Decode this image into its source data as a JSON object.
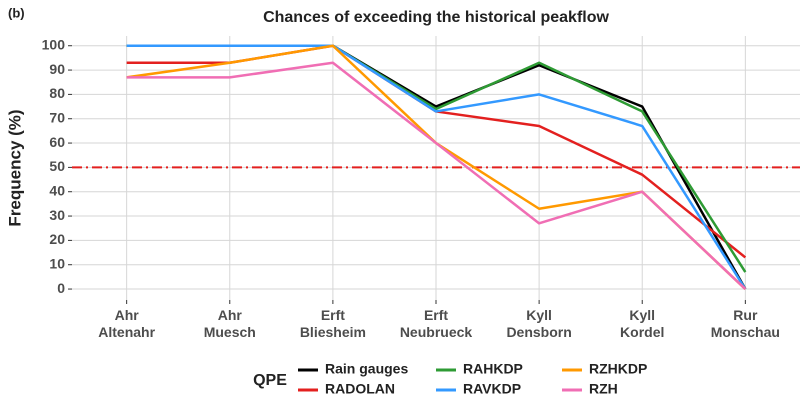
{
  "chart_data": {
    "type": "line",
    "panel_label": "(b)",
    "title": "Chances of exceeding the historical peakflow",
    "y_label": "Frequency (%)",
    "legend_title": "QPE",
    "categories": [
      "Ahr\nAltenahr",
      "Ahr\nMuesch",
      "Erft\nBliesheim",
      "Erft\nNeubrueck",
      "Kyll\nDensborn",
      "Kyll\nKordel",
      "Rur\nMonschau"
    ],
    "series": [
      {
        "name": "Rain gauges",
        "color": "#000000",
        "values": [
          100,
          100,
          100,
          75,
          92,
          75,
          0
        ]
      },
      {
        "name": "RADOLAN",
        "color": "#e3201f",
        "values": [
          93,
          93,
          100,
          73,
          67,
          47,
          13
        ]
      },
      {
        "name": "RAHKDP",
        "color": "#2e9b34",
        "values": [
          100,
          100,
          100,
          74,
          93,
          73,
          7
        ]
      },
      {
        "name": "RAVKDP",
        "color": "#3399ff",
        "values": [
          100,
          100,
          100,
          73,
          80,
          67,
          0
        ]
      },
      {
        "name": "RZHKDP",
        "color": "#ff9900",
        "values": [
          87,
          93,
          100,
          60,
          33,
          40,
          0
        ]
      },
      {
        "name": "RZH",
        "color": "#f06eb4",
        "values": [
          87,
          87,
          93,
          60,
          27,
          40,
          0
        ]
      }
    ],
    "reference_line": {
      "value": 50,
      "color": "#e3201f"
    },
    "ylim": [
      -4.5,
      104
    ],
    "yticks": [
      0,
      10,
      20,
      30,
      40,
      50,
      60,
      70,
      80,
      90,
      100
    ],
    "grid": true,
    "legend_position": "bottom"
  }
}
